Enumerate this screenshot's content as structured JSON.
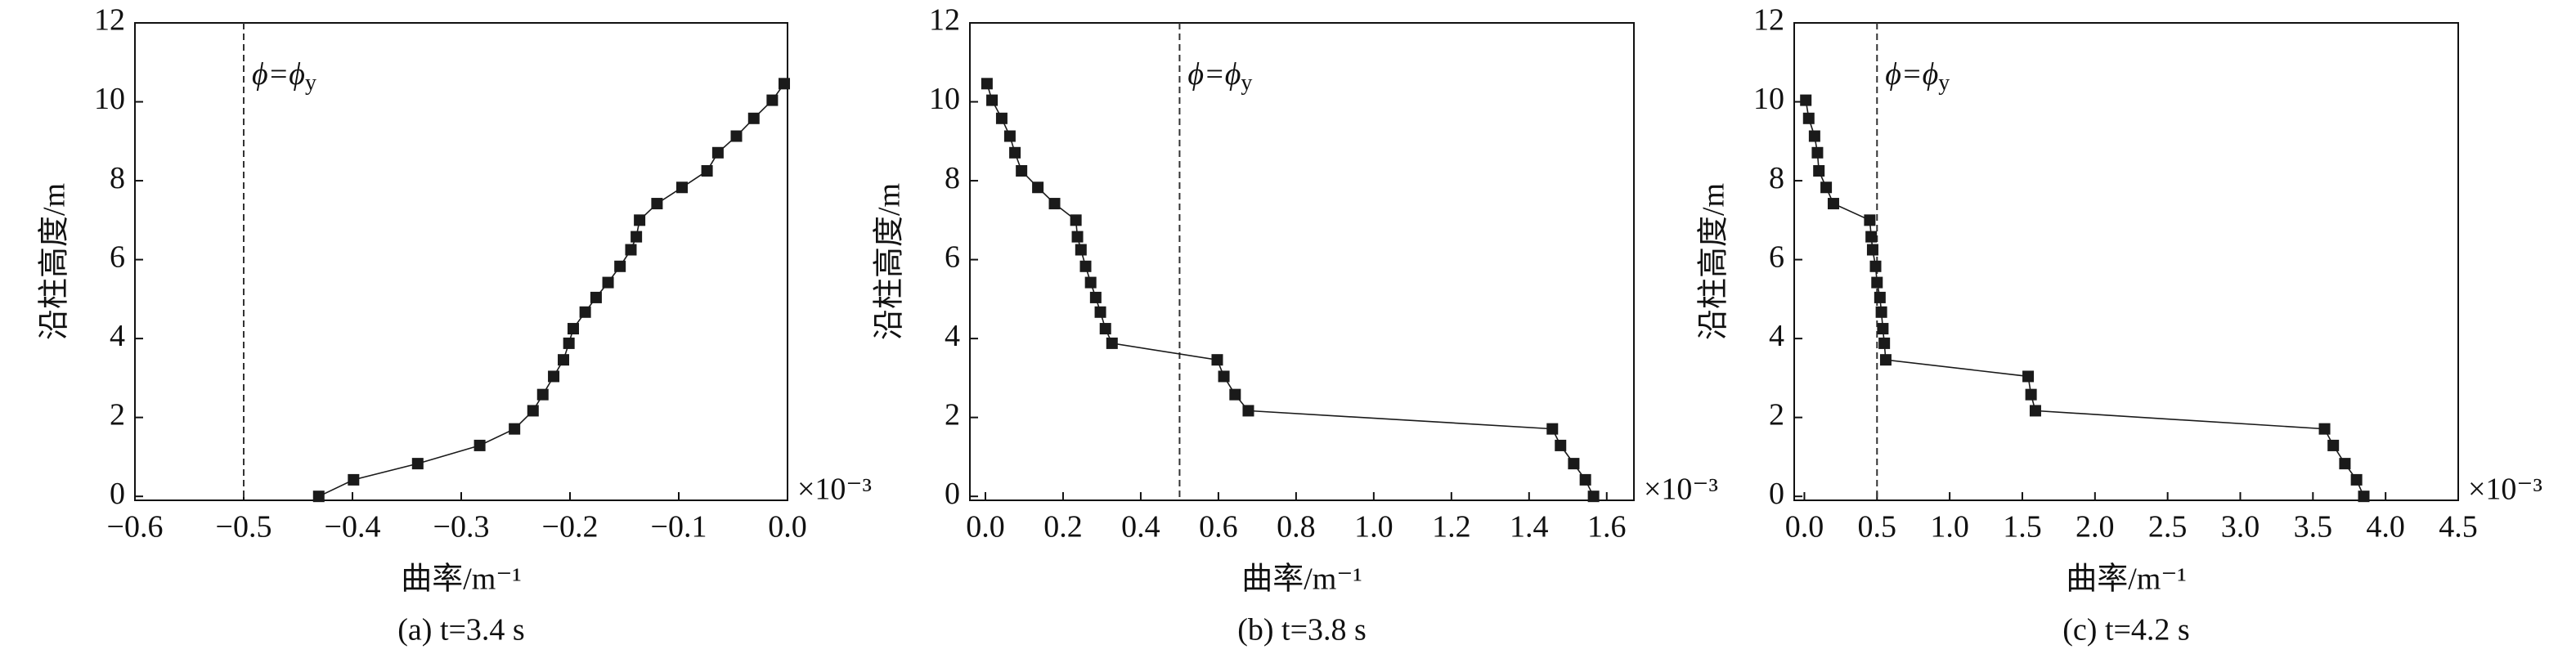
{
  "chart_data": [
    {
      "type": "line",
      "xlabel": "曲率/m⁻¹",
      "ylabel": "沿柱高度/m",
      "caption": "(a) t=3.4 s",
      "x_multiplier": "×10⁻³",
      "annotation": "ϕ=ϕ",
      "annotation_sub": "y",
      "vline": -0.5,
      "color": "#1a1a1a",
      "xlim": [
        -0.6,
        0.0
      ],
      "ylim": [
        -0.1,
        12
      ],
      "xticks": [
        {
          "value": -0.6,
          "label": "−0.6"
        },
        {
          "value": -0.5,
          "label": "−0.5"
        },
        {
          "value": -0.4,
          "label": "−0.4"
        },
        {
          "value": -0.3,
          "label": "−0.3"
        },
        {
          "value": -0.2,
          "label": "−0.2"
        },
        {
          "value": -0.1,
          "label": "−0.1"
        },
        {
          "value": 0,
          "label": "0.0"
        }
      ],
      "yticks": [
        0,
        2,
        4,
        6,
        8,
        10,
        12
      ],
      "x": [
        -0.431,
        -0.399,
        -0.34,
        -0.283,
        -0.251,
        -0.234,
        -0.225,
        -0.215,
        -0.206,
        -0.201,
        -0.197,
        -0.186,
        -0.176,
        -0.165,
        -0.154,
        -0.144,
        -0.139,
        -0.136,
        -0.12,
        -0.097,
        -0.074,
        -0.064,
        -0.047,
        -0.031,
        -0.014,
        -0.003
      ],
      "values": [
        0,
        0.42,
        0.83,
        1.29,
        1.71,
        2.17,
        2.58,
        3.04,
        3.46,
        3.88,
        4.25,
        4.67,
        5.04,
        5.42,
        5.83,
        6.25,
        6.58,
        7.0,
        7.42,
        7.83,
        8.25,
        8.71,
        9.13,
        9.58,
        10.04,
        10.46
      ]
    },
    {
      "type": "line",
      "xlabel": "曲率/m⁻¹",
      "ylabel": "沿柱高度/m",
      "caption": "(b) t=3.8 s",
      "x_multiplier": "×10⁻³",
      "annotation": "ϕ=ϕ",
      "annotation_sub": "y",
      "vline": 0.5,
      "color": "#1a1a1a",
      "xlim": [
        -0.04,
        1.67
      ],
      "ylim": [
        -0.1,
        12
      ],
      "xticks": [
        {
          "value": 0,
          "label": "0.0"
        },
        {
          "value": 0.2,
          "label": "0.2"
        },
        {
          "value": 0.4,
          "label": "0.4"
        },
        {
          "value": 0.6,
          "label": "0.6"
        },
        {
          "value": 0.8,
          "label": "0.8"
        },
        {
          "value": 1,
          "label": "1.0"
        },
        {
          "value": 1.2,
          "label": "1.2"
        },
        {
          "value": 1.4,
          "label": "1.4"
        },
        {
          "value": 1.6,
          "label": "1.6"
        }
      ],
      "yticks": [
        0,
        2,
        4,
        6,
        8,
        10,
        12
      ],
      "x": [
        1.566,
        1.545,
        1.515,
        1.481,
        1.46,
        0.677,
        0.643,
        0.614,
        0.597,
        0.326,
        0.309,
        0.296,
        0.284,
        0.271,
        0.258,
        0.246,
        0.237,
        0.233,
        0.178,
        0.135,
        0.093,
        0.076,
        0.063,
        0.042,
        0.017,
        0.004
      ],
      "values": [
        0,
        0.42,
        0.83,
        1.29,
        1.71,
        2.17,
        2.58,
        3.04,
        3.46,
        3.88,
        4.25,
        4.67,
        5.04,
        5.42,
        5.83,
        6.25,
        6.58,
        7.0,
        7.42,
        7.83,
        8.25,
        8.71,
        9.13,
        9.58,
        10.04,
        10.46
      ]
    },
    {
      "type": "line",
      "xlabel": "曲率/m⁻¹",
      "ylabel": "沿柱高度/m",
      "caption": "(c) t=4.2 s",
      "x_multiplier": "×10⁻³",
      "annotation": "ϕ=ϕ",
      "annotation_sub": "y",
      "vline": 0.5,
      "color": "#1a1a1a",
      "xlim": [
        -0.07,
        4.5
      ],
      "ylim": [
        -0.1,
        12
      ],
      "xticks": [
        {
          "value": 0,
          "label": "0.0"
        },
        {
          "value": 0.5,
          "label": "0.5"
        },
        {
          "value": 1,
          "label": "1.0"
        },
        {
          "value": 1.5,
          "label": "1.5"
        },
        {
          "value": 2,
          "label": "2.0"
        },
        {
          "value": 2.5,
          "label": "2.5"
        },
        {
          "value": 3,
          "label": "3.0"
        },
        {
          "value": 3.5,
          "label": "3.5"
        },
        {
          "value": 4,
          "label": "4.0"
        },
        {
          "value": 4.5,
          "label": "4.5"
        }
      ],
      "yticks": [
        0,
        2,
        4,
        6,
        8,
        10,
        12
      ],
      "x": [
        3.85,
        3.8,
        3.72,
        3.64,
        3.58,
        1.59,
        1.56,
        1.54,
        0.56,
        0.55,
        0.54,
        0.53,
        0.52,
        0.5,
        0.49,
        0.47,
        0.46,
        0.45,
        0.2,
        0.15,
        0.1,
        0.09,
        0.07,
        0.03,
        0.01
      ],
      "values": [
        0,
        0.42,
        0.83,
        1.29,
        1.71,
        2.17,
        2.58,
        3.04,
        3.46,
        3.88,
        4.25,
        4.67,
        5.04,
        5.42,
        5.83,
        6.25,
        6.58,
        7.0,
        7.42,
        7.83,
        8.25,
        8.71,
        9.13,
        9.58,
        10.04
      ]
    }
  ]
}
